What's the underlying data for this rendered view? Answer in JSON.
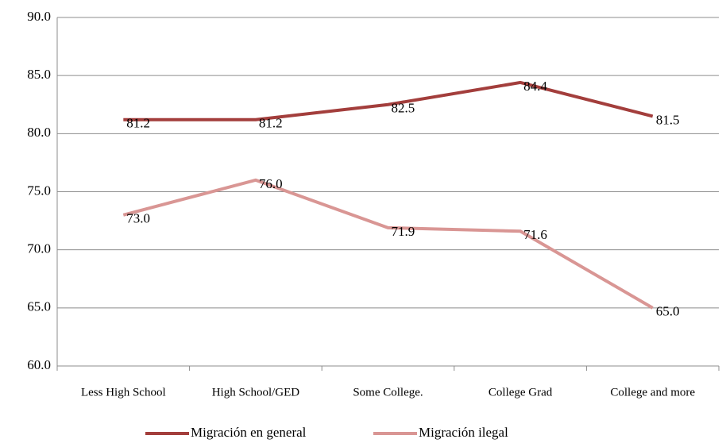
{
  "chart_data": {
    "type": "line",
    "categories": [
      "Less High School",
      "High School/GED",
      "Some College.",
      "College Grad",
      "College and more"
    ],
    "series": [
      {
        "name": "Migración en general",
        "color": "#a33e3c",
        "values": [
          81.2,
          81.2,
          82.5,
          84.4,
          81.5
        ]
      },
      {
        "name": "Migración ilegal",
        "color": "#d99694",
        "values": [
          73.0,
          76.0,
          71.9,
          71.6,
          65.0
        ],
        "value_labels": [
          "73.0",
          "76.0",
          "71.9",
          "71.6",
          "65.0"
        ]
      }
    ],
    "ylim": [
      60,
      90
    ],
    "yticks": [
      {
        "value": 60,
        "label": "60.0"
      },
      {
        "value": 65,
        "label": "65.0"
      },
      {
        "value": 70,
        "label": "70.0"
      },
      {
        "value": 75,
        "label": "75.0"
      },
      {
        "value": 80,
        "label": "80.0"
      },
      {
        "value": 85,
        "label": "85.0"
      },
      {
        "value": 90,
        "label": "90.0"
      }
    ],
    "grid": true,
    "legend": "bottom"
  }
}
